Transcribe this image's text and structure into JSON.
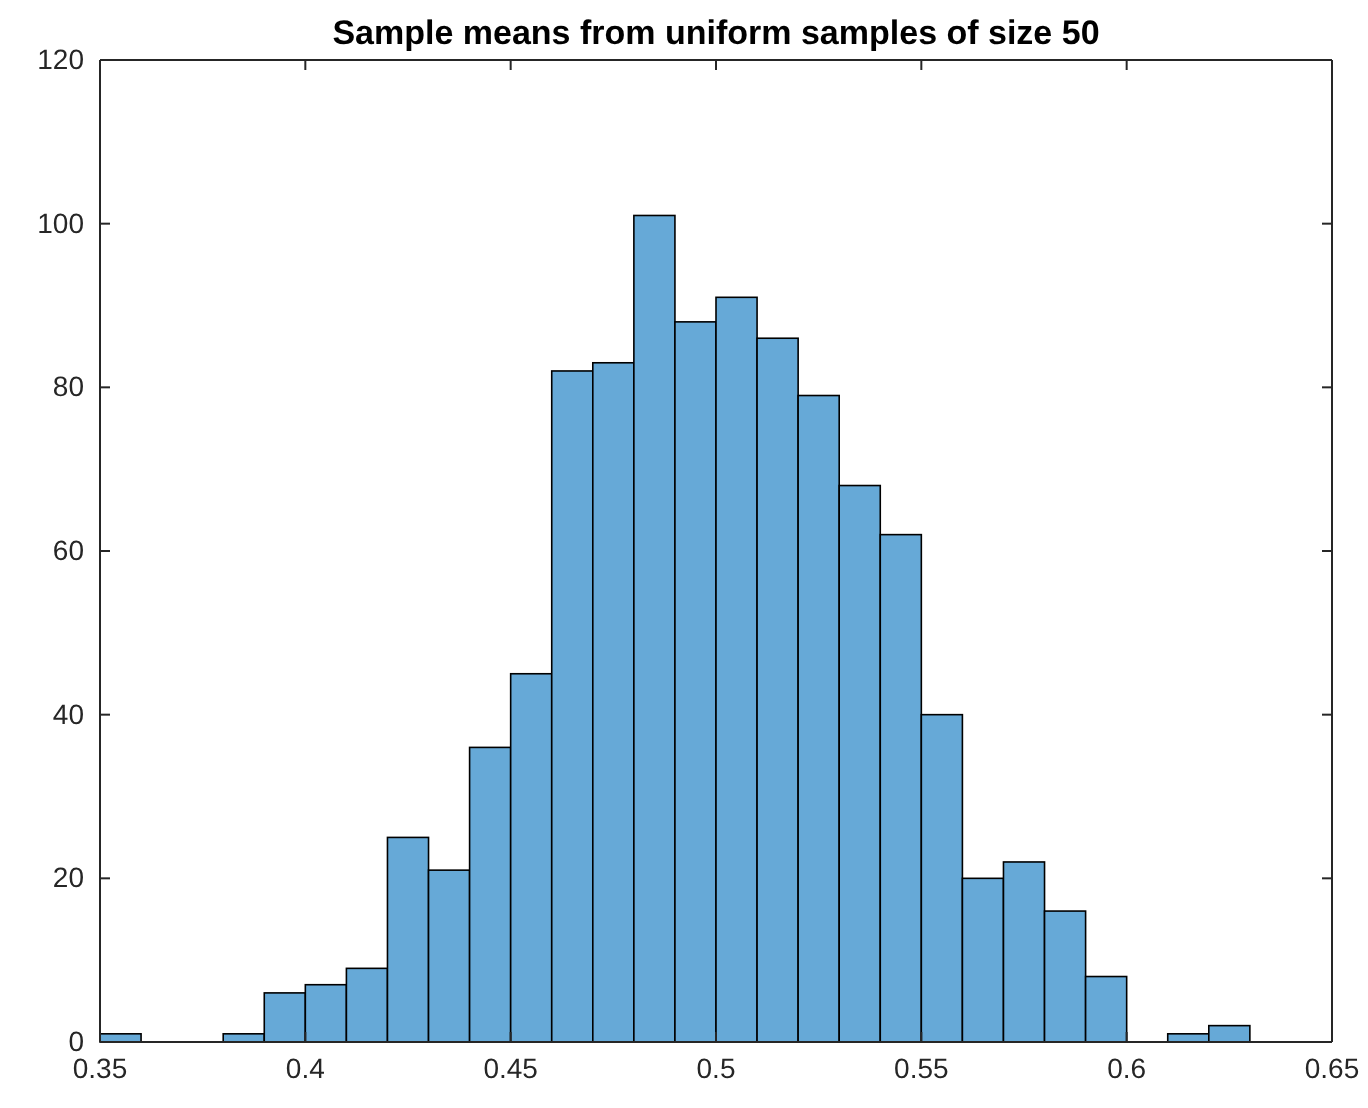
{
  "chart_data": {
    "type": "histogram",
    "title": "Sample means from uniform samples of size 50",
    "bins": [
      0.35,
      0.36,
      0.37,
      0.38,
      0.39,
      0.4,
      0.41,
      0.42,
      0.43,
      0.44,
      0.45,
      0.46,
      0.47,
      0.48,
      0.49,
      0.5,
      0.51,
      0.52,
      0.53,
      0.54,
      0.55,
      0.56,
      0.57,
      0.58,
      0.59,
      0.6,
      0.61,
      0.62,
      0.63
    ],
    "values": [
      1,
      0,
      0,
      1,
      6,
      7,
      9,
      25,
      21,
      36,
      45,
      82,
      83,
      101,
      88,
      91,
      86,
      79,
      68,
      62,
      40,
      20,
      22,
      16,
      8,
      0,
      1,
      2
    ],
    "color": "#66a9d7",
    "xlim": [
      0.35,
      0.65
    ],
    "xticks": [
      0.35,
      0.4,
      0.45,
      0.5,
      0.55,
      0.6,
      0.65
    ],
    "ylim": [
      0,
      120
    ],
    "yticks": [
      0,
      20,
      40,
      60,
      80,
      100,
      120
    ],
    "grid": false
  }
}
